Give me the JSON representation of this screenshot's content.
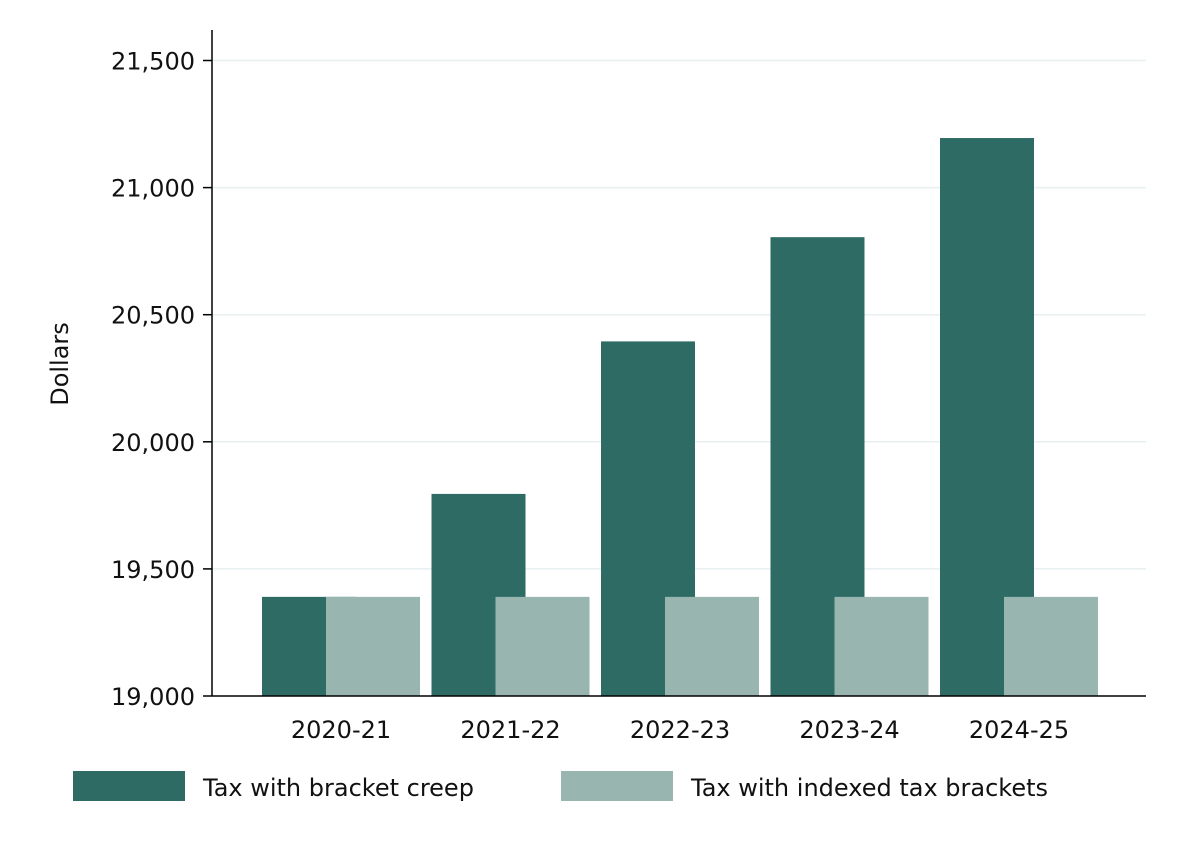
{
  "chart_data": {
    "type": "bar",
    "title": "",
    "xlabel": "",
    "ylabel": "Dollars",
    "categories": [
      "2020-21",
      "2021-22",
      "2022-23",
      "2023-24",
      "2024-25"
    ],
    "series": [
      {
        "name": "Tax with bracket creep",
        "values": [
          19390,
          19795,
          20395,
          20805,
          21195
        ],
        "color": "#2e6b65"
      },
      {
        "name": "Tax with indexed tax brackets",
        "values": [
          19390,
          19390,
          19390,
          19390,
          19390
        ],
        "color": "#98b5af"
      }
    ],
    "ylim": [
      19000,
      21620
    ],
    "yticks": [
      19000,
      19500,
      20000,
      20500,
      21000,
      21500
    ],
    "ytick_labels": [
      "19,000",
      "19,500",
      "20,000",
      "20,500",
      "21,000",
      "21,500"
    ],
    "grid": true,
    "legend_position": "bottom"
  }
}
